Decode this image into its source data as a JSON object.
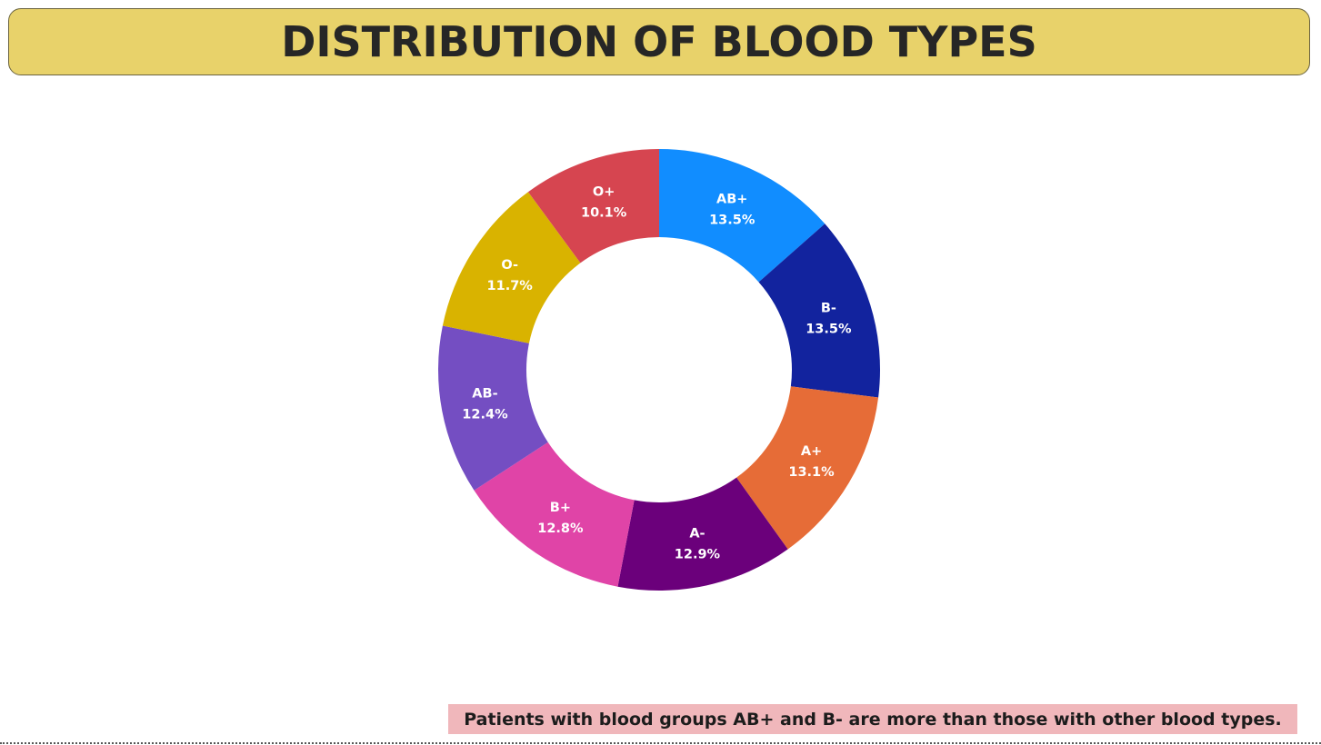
{
  "header": {
    "title": "DISTRIBUTION OF BLOOD TYPES"
  },
  "insight": {
    "text": "Patients with blood groups AB+ and B- are more than those with other blood types."
  },
  "colors": {
    "title_background": "#E8D26A",
    "insight_background": "#F0B7BB"
  },
  "chart_data": {
    "type": "pie",
    "variant": "donut",
    "legend": "none",
    "data_labels": "category and percent",
    "slices": [
      {
        "label": "AB+",
        "value": 13.5,
        "display": "13.5%",
        "color": "#118DFF"
      },
      {
        "label": "B-",
        "value": 13.5,
        "display": "13.5%",
        "color": "#12239E"
      },
      {
        "label": "A+",
        "value": 13.1,
        "display": "13.1%",
        "color": "#E66C37"
      },
      {
        "label": "A-",
        "value": 12.9,
        "display": "12.9%",
        "color": "#6B007B"
      },
      {
        "label": "B+",
        "value": 12.8,
        "display": "12.8%",
        "color": "#E044A7"
      },
      {
        "label": "AB-",
        "value": 12.4,
        "display": "12.4%",
        "color": "#744EC2"
      },
      {
        "label": "O-",
        "value": 11.7,
        "display": "11.7%",
        "color": "#D9B300"
      },
      {
        "label": "O+",
        "value": 10.1,
        "display": "10.1%",
        "color": "#D64550"
      }
    ]
  }
}
